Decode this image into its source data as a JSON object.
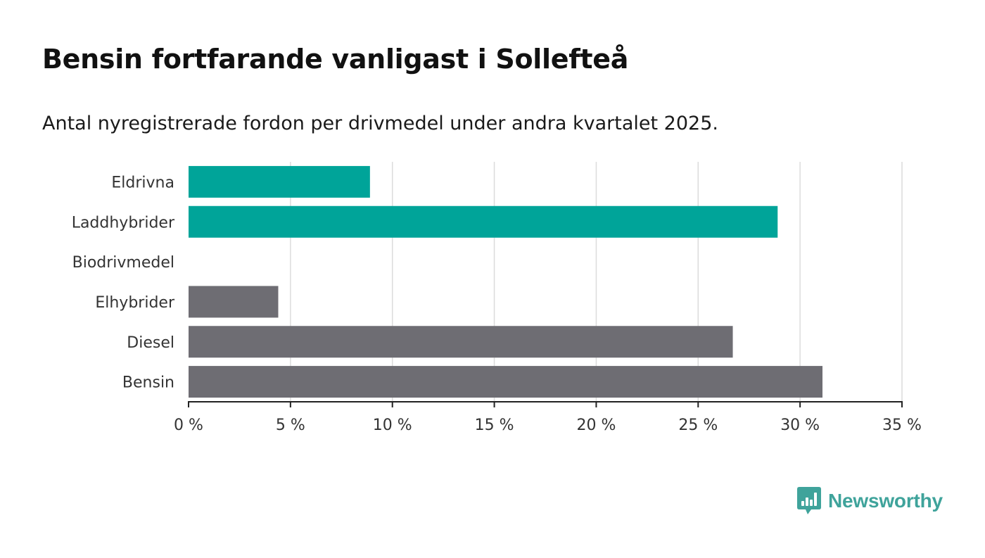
{
  "header": {
    "title": "Bensin fortfarande vanligast i Sollefteå",
    "subtitle": "Antal nyregistrerade fordon per drivmedel under andra kvartalet 2025."
  },
  "chart_data": {
    "type": "bar",
    "orientation": "horizontal",
    "categories": [
      "Eldrivna",
      "Laddhybrider",
      "Biodrivmedel",
      "Elhybrider",
      "Diesel",
      "Bensin"
    ],
    "values": [
      8.9,
      28.9,
      0,
      4.4,
      26.7,
      31.1
    ],
    "bar_colors": [
      "#00a499",
      "#00a499",
      "#00a499",
      "#6e6d73",
      "#6e6d73",
      "#6e6d73"
    ],
    "xlim": [
      0,
      35
    ],
    "x_ticks": [
      0,
      5,
      10,
      15,
      20,
      25,
      30,
      35
    ],
    "x_tick_labels": [
      "0 %",
      "5 %",
      "10 %",
      "15 %",
      "20 %",
      "25 %",
      "30 %",
      "35 %"
    ],
    "xlabel": "",
    "ylabel": "",
    "grid": "vertical",
    "legend": "none"
  },
  "branding": {
    "logo_text": "Newsworthy",
    "logo_color": "#3fa39b",
    "logo_icon": "bar-chart-speech-bubble-icon"
  }
}
